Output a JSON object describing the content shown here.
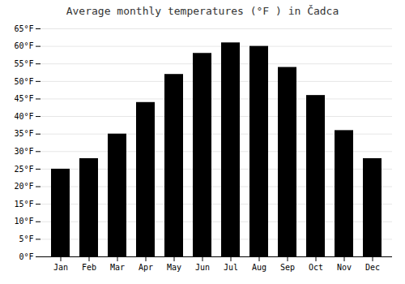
{
  "chart_data": {
    "type": "bar",
    "title": "Average monthly temperatures (°F ) in Čadca",
    "categories": [
      "Jan",
      "Feb",
      "Mar",
      "Apr",
      "May",
      "Jun",
      "Jul",
      "Aug",
      "Sep",
      "Oct",
      "Nov",
      "Dec"
    ],
    "values": [
      25,
      28,
      35,
      44,
      52,
      58,
      61,
      60,
      54,
      46,
      36,
      28
    ],
    "ylim": [
      0,
      65
    ],
    "yticks": [
      {
        "value": 0,
        "label": "0°F"
      },
      {
        "value": 5,
        "label": "5°F"
      },
      {
        "value": 10,
        "label": "10°F"
      },
      {
        "value": 15,
        "label": "15°F"
      },
      {
        "value": 20,
        "label": "20°F"
      },
      {
        "value": 25,
        "label": "25°F"
      },
      {
        "value": 30,
        "label": "30°F"
      },
      {
        "value": 35,
        "label": "35°F"
      },
      {
        "value": 40,
        "label": "40°F"
      },
      {
        "value": 45,
        "label": "45°F"
      },
      {
        "value": 50,
        "label": "50°F"
      },
      {
        "value": 55,
        "label": "55°F"
      },
      {
        "value": 60,
        "label": "60°F"
      },
      {
        "value": 65,
        "label": "65°F"
      }
    ],
    "grid": true
  }
}
